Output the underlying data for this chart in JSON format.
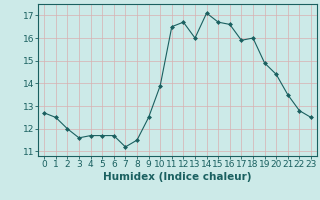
{
  "x": [
    0,
    1,
    2,
    3,
    4,
    5,
    6,
    7,
    8,
    9,
    10,
    11,
    12,
    13,
    14,
    15,
    16,
    17,
    18,
    19,
    20,
    21,
    22,
    23
  ],
  "y": [
    12.7,
    12.5,
    12.0,
    11.6,
    11.7,
    11.7,
    11.7,
    11.2,
    11.5,
    12.5,
    13.9,
    16.5,
    16.7,
    16.0,
    17.1,
    16.7,
    16.6,
    15.9,
    16.0,
    14.9,
    14.4,
    13.5,
    12.8,
    12.5
  ],
  "xlabel": "Humidex (Indice chaleur)",
  "ylim": [
    10.8,
    17.5
  ],
  "xlim": [
    -0.5,
    23.5
  ],
  "yticks": [
    11,
    12,
    13,
    14,
    15,
    16,
    17
  ],
  "xticks": [
    0,
    1,
    2,
    3,
    4,
    5,
    6,
    7,
    8,
    9,
    10,
    11,
    12,
    13,
    14,
    15,
    16,
    17,
    18,
    19,
    20,
    21,
    22,
    23
  ],
  "line_color": "#1a6060",
  "marker": "D",
  "marker_size": 2.0,
  "bg_color": "#cceae8",
  "grid_color": "#b0d8d5",
  "tick_label_fontsize": 6.5,
  "xlabel_fontsize": 7.5
}
